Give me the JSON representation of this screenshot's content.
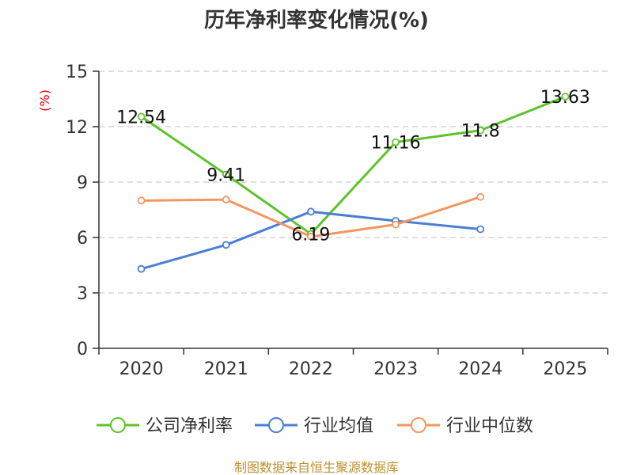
{
  "chart_data": {
    "type": "line",
    "title": "历年净利率变化情况(%)",
    "ylabel": "(%)",
    "categories": [
      "2020",
      "2021",
      "2022",
      "2023",
      "2024",
      "2025"
    ],
    "ylim": [
      0,
      15
    ],
    "yticks": [
      0,
      3,
      6,
      9,
      12,
      15
    ],
    "grid": true,
    "legend": "bottom",
    "series": [
      {
        "name": "公司净利率",
        "color": "#5cc42a",
        "values": [
          12.54,
          9.41,
          6.19,
          11.16,
          11.8,
          13.63
        ],
        "labels": [
          "12.54",
          "9.41",
          "6.19",
          "11.16",
          "11.8",
          "13.63"
        ]
      },
      {
        "name": "行业均值",
        "color": "#4a7fd6",
        "values": [
          4.3,
          5.6,
          7.4,
          6.9,
          6.45,
          null
        ]
      },
      {
        "name": "行业中位数",
        "color": "#f59560",
        "values": [
          8.0,
          8.05,
          6.05,
          6.7,
          8.2,
          null
        ]
      }
    ]
  },
  "footer": {
    "source": "制图数据来自恒生聚源数据库"
  }
}
